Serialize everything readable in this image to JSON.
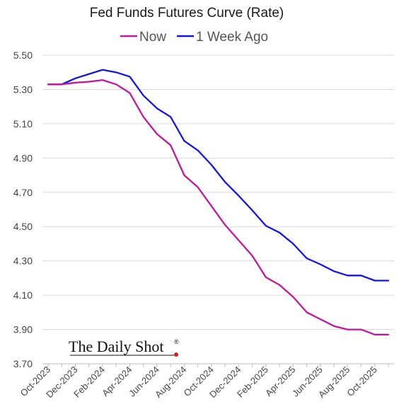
{
  "chart_data": {
    "type": "line",
    "title": "Fed Funds Futures Curve (Rate)",
    "xlabel": "",
    "ylabel": "",
    "ylim": [
      3.7,
      5.5
    ],
    "yticks": [
      "5.50",
      "5.30",
      "5.10",
      "4.90",
      "4.70",
      "4.50",
      "4.30",
      "4.10",
      "3.90",
      "3.70"
    ],
    "xticks": [
      "Oct-2023",
      "Dec-2023",
      "Feb-2024",
      "Apr-2024",
      "Jun-2024",
      "Aug-2024",
      "Oct-2024",
      "Dec-2024",
      "Feb-2025",
      "Apr-2025",
      "Jun-2025",
      "Aug-2025",
      "Oct-2025"
    ],
    "x": [
      "Oct-2023",
      "Nov-2023",
      "Dec-2023",
      "Jan-2024",
      "Feb-2024",
      "Mar-2024",
      "Apr-2024",
      "May-2024",
      "Jun-2024",
      "Jul-2024",
      "Aug-2024",
      "Sep-2024",
      "Oct-2024",
      "Nov-2024",
      "Dec-2024",
      "Jan-2025",
      "Feb-2025",
      "Mar-2025",
      "Apr-2025",
      "May-2025",
      "Jun-2025",
      "Jul-2025",
      "Aug-2025",
      "Sep-2025",
      "Oct-2025",
      "Nov-2025"
    ],
    "grid": true,
    "legend_position": "top-center",
    "series": [
      {
        "name": "Now",
        "color": "#C0189B",
        "values": [
          5.33,
          5.33,
          5.34,
          5.345,
          5.355,
          5.33,
          5.28,
          5.14,
          5.04,
          4.975,
          4.8,
          4.73,
          4.62,
          4.51,
          4.42,
          4.33,
          4.205,
          4.16,
          4.09,
          4.0,
          3.96,
          3.92,
          3.9,
          3.9,
          3.87,
          3.87
        ]
      },
      {
        "name": "1 Week Ago",
        "color": "#1515E0",
        "values": [
          5.33,
          5.33,
          5.365,
          5.39,
          5.415,
          5.4,
          5.375,
          5.265,
          5.19,
          5.14,
          5.0,
          4.945,
          4.86,
          4.76,
          4.68,
          4.595,
          4.505,
          4.465,
          4.4,
          4.315,
          4.28,
          4.24,
          4.215,
          4.215,
          4.185,
          4.185
        ]
      }
    ]
  },
  "watermark": {
    "text": "The Daily Shot",
    "mark": "®",
    "dot_color": "#D42020"
  }
}
